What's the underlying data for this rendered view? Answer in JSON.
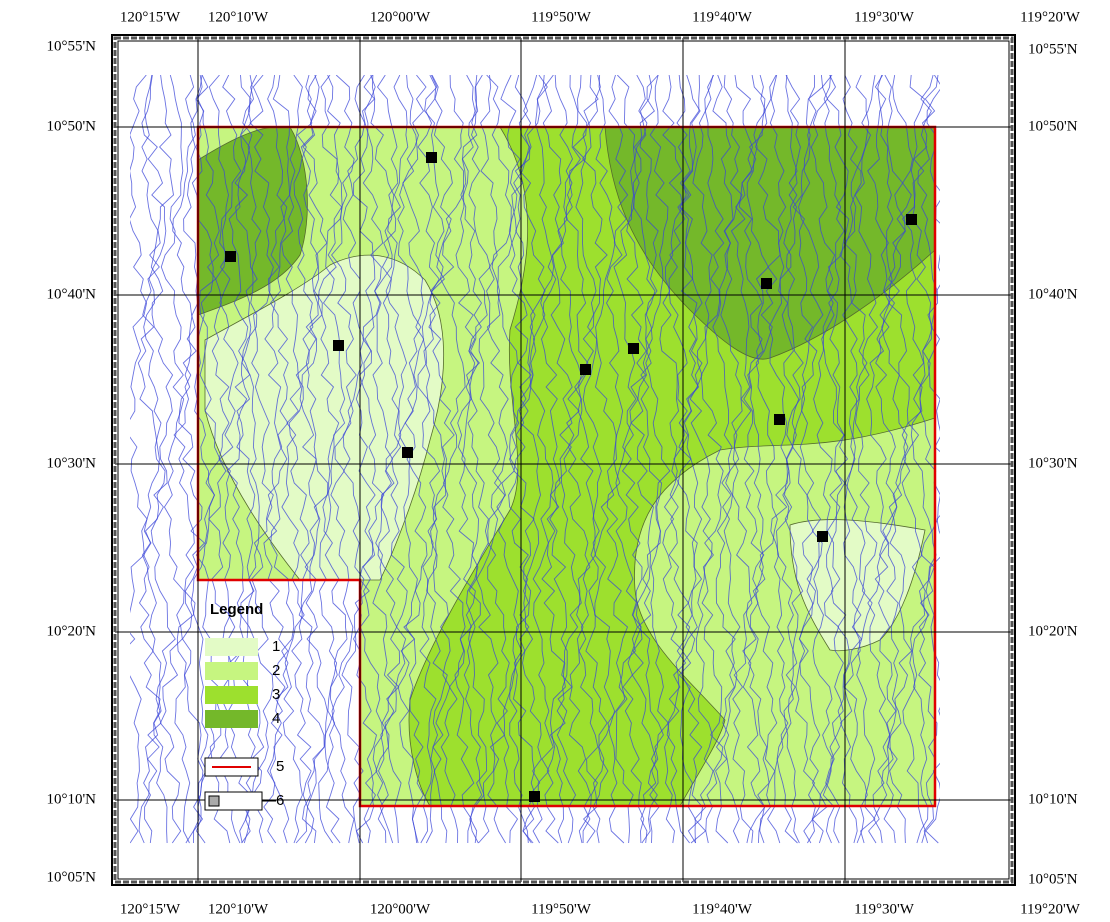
{
  "top_labels": [
    "120°15'W",
    "120°10'W",
    "120°00'W",
    "119°50'W",
    "119°40'W",
    "119°30'W",
    "119°20'W"
  ],
  "bottom_labels": [
    "120°15'W",
    "120°10'W",
    "120°00'W",
    "119°50'W",
    "119°40'W",
    "119°30'W",
    "119°20'W"
  ],
  "left_labels": [
    "10°55'N",
    "10°50'N",
    "10°40'N",
    "10°30'N",
    "10°20'N",
    "10°10'N",
    "10°05'N"
  ],
  "right_labels": [
    "10°55'N",
    "10°50'N",
    "10°40'N",
    "10°30'N",
    "10°20'N",
    "10°10'N",
    "10°05'N"
  ],
  "legend": {
    "title": "Legend",
    "items": [
      "1",
      "2",
      "3",
      "4",
      "5",
      "6"
    ]
  }
}
